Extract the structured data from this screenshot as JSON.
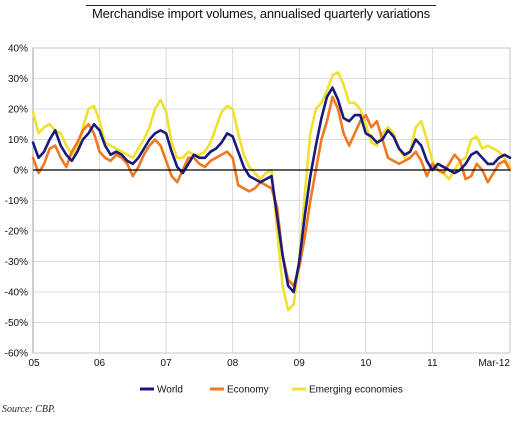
{
  "title": "Merchandise import volumes, annualised quarterly variations",
  "source": "Source: CBP.",
  "chart_data": {
    "type": "line",
    "title": "Merchandise import volumes, annualised quarterly variations",
    "ylim": [
      -60,
      40
    ],
    "y_ticks": [
      40,
      30,
      20,
      10,
      0,
      -10,
      -20,
      -30,
      -40,
      -50,
      -60
    ],
    "y_tick_labels": [
      "40%",
      "30%",
      "20%",
      "10%",
      "0%",
      "-10%",
      "-20%",
      "-30%",
      "-40%",
      "-50%",
      "-60%"
    ],
    "x_tick_labels": [
      "05",
      "06",
      "07",
      "08",
      "09",
      "10",
      "11",
      "Mar-12"
    ],
    "x_tick_positions": [
      0,
      12,
      24,
      36,
      48,
      60,
      72,
      86
    ],
    "grid": true,
    "legend_position": "bottom",
    "x": [
      0,
      1,
      2,
      3,
      4,
      5,
      6,
      7,
      8,
      9,
      10,
      11,
      12,
      13,
      14,
      15,
      16,
      17,
      18,
      19,
      20,
      21,
      22,
      23,
      24,
      25,
      26,
      27,
      28,
      29,
      30,
      31,
      32,
      33,
      34,
      35,
      36,
      37,
      38,
      39,
      40,
      41,
      42,
      43,
      44,
      45,
      46,
      47,
      48,
      49,
      50,
      51,
      52,
      53,
      54,
      55,
      56,
      57,
      58,
      59,
      60,
      61,
      62,
      63,
      64,
      65,
      66,
      67,
      68,
      69,
      70,
      71,
      72,
      73,
      74,
      75,
      76,
      77,
      78,
      79,
      80,
      81,
      82,
      83,
      84,
      85,
      86
    ],
    "series": [
      {
        "name": "World",
        "color": "#1a1a7e",
        "values": [
          9,
          4,
          6,
          10,
          13,
          8,
          5,
          3,
          6,
          10,
          12,
          15,
          13,
          8,
          5,
          6,
          5,
          3,
          2,
          4,
          7,
          10,
          12,
          13,
          12,
          6,
          1,
          -1,
          2,
          5,
          4,
          4,
          6,
          7,
          9,
          12,
          11,
          6,
          1,
          -2,
          -3,
          -4,
          -3,
          -2,
          -15,
          -28,
          -38,
          -40,
          -30,
          -15,
          -2,
          8,
          17,
          24,
          27,
          23,
          17,
          16,
          18,
          18,
          12,
          11,
          9,
          10,
          13,
          11,
          7,
          5,
          6,
          10,
          8,
          3,
          0,
          2,
          1,
          0,
          -1,
          0,
          2,
          5,
          6,
          4,
          2,
          2,
          4,
          5,
          4
        ]
      },
      {
        "name": "Economy",
        "color": "#f07820",
        "values": [
          4,
          -1,
          2,
          7,
          8,
          4,
          1,
          6,
          9,
          13,
          15,
          12,
          6,
          4,
          3,
          5,
          4,
          2,
          -2,
          1,
          5,
          8,
          10,
          8,
          3,
          -2,
          -4,
          0,
          4,
          4,
          2,
          1,
          3,
          4,
          5,
          6,
          4,
          -5,
          -6,
          -7,
          -6,
          -4,
          -5,
          -6,
          -12,
          -28,
          -36,
          -38,
          -32,
          -22,
          -10,
          0,
          10,
          16,
          24,
          20,
          12,
          8,
          12,
          16,
          18,
          14,
          16,
          10,
          4,
          3,
          2,
          3,
          4,
          6,
          3,
          -2,
          2,
          0,
          -1,
          2,
          5,
          3,
          -3,
          -2,
          2,
          0,
          -4,
          -1,
          2,
          3,
          0
        ]
      },
      {
        "name": "Emerging economies",
        "color": "#f0e030",
        "values": [
          19,
          12,
          14,
          15,
          13,
          12,
          8,
          5,
          7,
          14,
          20,
          21,
          16,
          9,
          8,
          7,
          6,
          5,
          4,
          7,
          10,
          14,
          20,
          23,
          19,
          9,
          4,
          4,
          6,
          5,
          5,
          6,
          9,
          14,
          19,
          21,
          20,
          12,
          5,
          1,
          -1,
          -3,
          -1,
          0,
          -20,
          -38,
          -46,
          -44,
          -30,
          -8,
          12,
          20,
          22,
          26,
          31,
          32,
          28,
          22,
          22,
          20,
          15,
          9,
          8,
          12,
          14,
          12,
          7,
          4,
          6,
          14,
          16,
          10,
          3,
          0,
          -1,
          -3,
          0,
          3,
          4,
          10,
          11,
          7,
          8,
          7,
          6,
          4,
          1
        ]
      }
    ]
  }
}
